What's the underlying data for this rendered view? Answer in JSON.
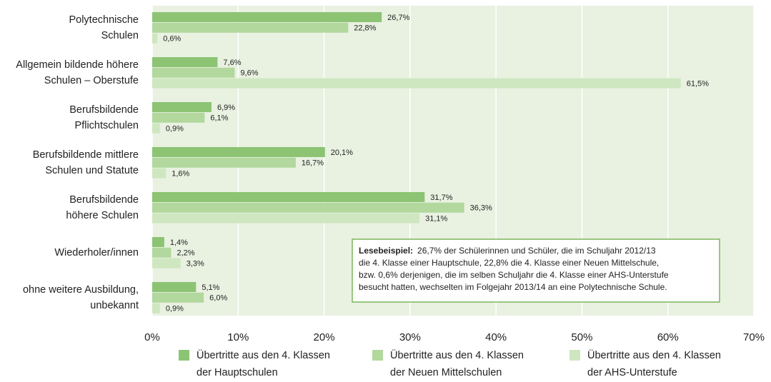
{
  "chart_data": {
    "type": "bar",
    "orientation": "horizontal",
    "categories": [
      [
        "Polytechnische",
        "Schulen"
      ],
      [
        "Allgemein bildende höhere",
        "Schulen – Oberstufe"
      ],
      [
        "Berufsbildende",
        "Pflichtschulen"
      ],
      [
        "Berufsbildende mittlere",
        "Schulen und Statute"
      ],
      [
        "Berufsbildende",
        "höhere Schulen"
      ],
      [
        "Wiederholer/innen"
      ],
      [
        "ohne weitere  Ausbildung,",
        "unbekannt"
      ]
    ],
    "series": [
      {
        "name": [
          "Übertritte aus den 4. Klassen",
          "der Hauptschulen"
        ],
        "color": "#8cc474",
        "values": [
          26.7,
          7.6,
          6.9,
          20.1,
          31.7,
          1.4,
          5.1
        ],
        "value_labels": [
          "26,7%",
          "7,6%",
          "6,9%",
          "20,1%",
          "31,7%",
          "1,4%",
          "5,1%"
        ]
      },
      {
        "name": [
          "Übertritte aus den 4. Klassen",
          "der Neuen Mittelschulen"
        ],
        "color": "#b2d89e",
        "values": [
          22.8,
          9.6,
          6.1,
          16.7,
          36.3,
          2.2,
          6.0
        ],
        "value_labels": [
          "22,8%",
          "9,6%",
          "6,1%",
          "16,7%",
          "36,3%",
          "2,2%",
          "6,0%"
        ]
      },
      {
        "name": [
          "Übertritte aus den 4. Klassen",
          "der AHS-Unterstufe"
        ],
        "color": "#cfe7c0",
        "values": [
          0.6,
          61.5,
          0.9,
          1.6,
          31.1,
          3.3,
          0.9
        ],
        "value_labels": [
          "0,6%",
          "61,5%",
          "0,9%",
          "1,6%",
          "31,1%",
          "3,3%",
          "0,9%"
        ]
      }
    ],
    "xlim": [
      0,
      70
    ],
    "xticks": [
      {
        "value": 0,
        "label": "0%"
      },
      {
        "value": 10,
        "label": "10%"
      },
      {
        "value": 20,
        "label": "20%"
      },
      {
        "value": 30,
        "label": "30%"
      },
      {
        "value": 40,
        "label": "40%"
      },
      {
        "value": 50,
        "label": "50%"
      },
      {
        "value": 60,
        "label": "60%"
      },
      {
        "value": 70,
        "label": "70%"
      }
    ],
    "grid": true,
    "annotation": {
      "title": "Lesebeispiel:",
      "lines": [
        "26,7% der Schülerinnen und Schüler, die im Schuljahr 2012/13",
        "die 4. Klasse einer Hauptschule, 22,8% die 4. Klasse einer Neuen Mittelschule,",
        "bzw. 0,6% derjenigen, die im selben Schuljahr die 4. Klasse einer AHS-Unterstufe",
        "besucht hatten, wechselten im Folgejahr 2013/14 an eine Polytechnische Schule."
      ]
    }
  }
}
